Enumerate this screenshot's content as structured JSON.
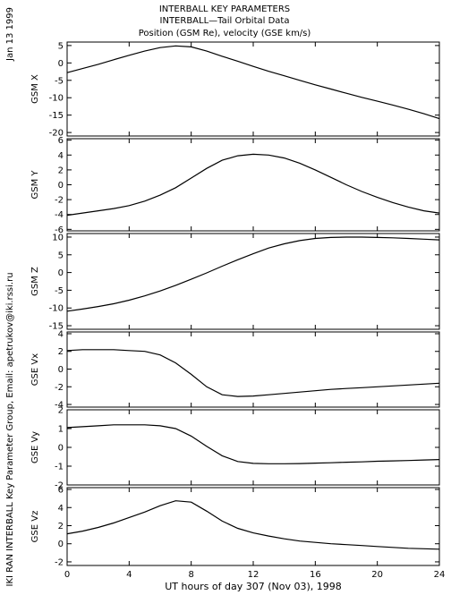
{
  "header": {
    "title_line1": "INTERBALL KEY PARAMETERS",
    "title_line2": "INTERBALL—Tail Orbital Data",
    "title_line3": "Position (GSM Re), velocity (GSE km/s)"
  },
  "side": {
    "date": "Jan 13 1999",
    "credit": "IKI RAN INTERBALL Key Parameter Group, Email: apetrukov@iki.rssi.ru"
  },
  "colors": {
    "line": "#000000",
    "background": "#ffffff"
  },
  "chart_data": {
    "type": "line",
    "xlabel": "UT hours of day 307 (Nov 03), 1998",
    "xlim": [
      0,
      24
    ],
    "xticks": [
      0,
      4,
      8,
      12,
      16,
      20,
      24
    ],
    "x": [
      0,
      1,
      2,
      3,
      4,
      5,
      6,
      7,
      8,
      9,
      10,
      11,
      12,
      13,
      14,
      15,
      16,
      17,
      18,
      19,
      20,
      21,
      22,
      23,
      24
    ],
    "panels": [
      {
        "ylabel": "GSM X",
        "ylim": [
          -21,
          6
        ],
        "yticks": [
          5,
          0,
          -5,
          -10,
          -15,
          -20
        ],
        "values": [
          -2.8,
          -1.6,
          -0.4,
          0.9,
          2.2,
          3.4,
          4.4,
          4.9,
          4.6,
          3.4,
          1.9,
          0.5,
          -1.0,
          -2.4,
          -3.7,
          -5.0,
          -6.3,
          -7.5,
          -8.7,
          -9.9,
          -11.0,
          -12.1,
          -13.3,
          -14.6,
          -16.0
        ]
      },
      {
        "ylabel": "GSM Y",
        "ylim": [
          -6.2,
          6.2
        ],
        "yticks": [
          6,
          4,
          2,
          0,
          -2,
          -4,
          -6
        ],
        "values": [
          -4.1,
          -3.8,
          -3.5,
          -3.2,
          -2.8,
          -2.2,
          -1.4,
          -0.4,
          0.9,
          2.2,
          3.3,
          3.9,
          4.1,
          4.0,
          3.6,
          2.9,
          2.0,
          1.0,
          0.0,
          -0.9,
          -1.7,
          -2.4,
          -3.0,
          -3.5,
          -3.8
        ]
      },
      {
        "ylabel": "GSM Z",
        "ylim": [
          -16,
          11
        ],
        "yticks": [
          10,
          5,
          0,
          -5,
          -10,
          -15
        ],
        "values": [
          -10.9,
          -10.3,
          -9.6,
          -8.8,
          -7.8,
          -6.6,
          -5.2,
          -3.6,
          -1.9,
          -0.1,
          1.8,
          3.6,
          5.3,
          6.9,
          8.1,
          9.0,
          9.6,
          9.9,
          10.0,
          10.0,
          9.9,
          9.8,
          9.6,
          9.4,
          9.2
        ]
      },
      {
        "ylabel": "GSE Vx",
        "ylim": [
          -4.3,
          4.2
        ],
        "yticks": [
          4,
          2,
          0,
          -2,
          -4
        ],
        "values": [
          2.1,
          2.2,
          2.2,
          2.2,
          2.1,
          2.0,
          1.6,
          0.7,
          -0.6,
          -2.0,
          -2.9,
          -3.1,
          -3.05,
          -2.9,
          -2.75,
          -2.6,
          -2.45,
          -2.3,
          -2.2,
          -2.1,
          -2.0,
          -1.9,
          -1.8,
          -1.7,
          -1.6
        ]
      },
      {
        "ylabel": "GSE Vy",
        "ylim": [
          -2,
          2
        ],
        "yticks": [
          2,
          1,
          0,
          -1,
          -2
        ],
        "values": [
          1.05,
          1.1,
          1.15,
          1.2,
          1.2,
          1.2,
          1.15,
          1.0,
          0.6,
          0.05,
          -0.45,
          -0.75,
          -0.85,
          -0.87,
          -0.87,
          -0.86,
          -0.84,
          -0.82,
          -0.79,
          -0.77,
          -0.74,
          -0.72,
          -0.7,
          -0.67,
          -0.65
        ]
      },
      {
        "ylabel": "GSE Vz",
        "ylim": [
          -2.4,
          6.2
        ],
        "yticks": [
          6,
          4,
          2,
          0,
          -2
        ],
        "values": [
          1.1,
          1.4,
          1.8,
          2.3,
          2.9,
          3.5,
          4.2,
          4.75,
          4.6,
          3.6,
          2.5,
          1.7,
          1.2,
          0.85,
          0.55,
          0.3,
          0.15,
          0.0,
          -0.1,
          -0.2,
          -0.3,
          -0.4,
          -0.5,
          -0.55,
          -0.6
        ]
      }
    ]
  }
}
